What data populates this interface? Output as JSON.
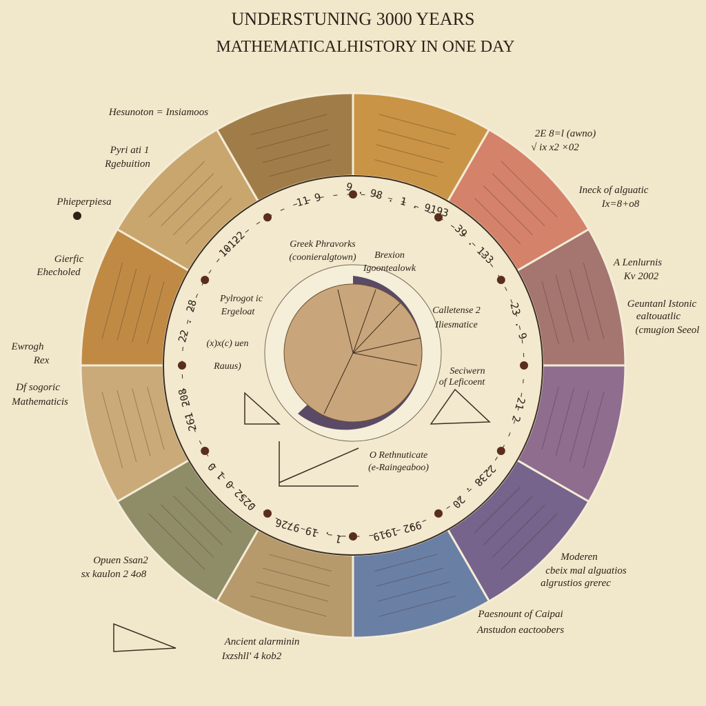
{
  "title": {
    "line1": "UNDERSTUNING 3000 YEARS",
    "line2": "MATHEMATICALHISTORY IN ONE DAY"
  },
  "labels": [
    "Hesunoton = Insiamoos",
    "Pyri ati 1",
    "Rgebuition",
    "Phieperpiesa",
    "Gierfic",
    "Ehecholed",
    "Ewrogh",
    "Rex",
    "Df sogoric",
    "Mathematicis",
    "Opuen Ssan2",
    "sx kaulon 2 4o8",
    "Ancient alarminin",
    "Ixzshll' 4 kob2",
    "Paesnount of Caipai",
    "Anstudon eactoobers",
    "Moderen",
    "cbeix mal alguatios",
    "algrustios grerec",
    "Ineck of alguatic",
    "Ix=8+o8",
    "A Lenlurnis",
    "Kv 2002",
    "Geuntanl Istonic",
    "ealtouatlic",
    "(cmugion Seeol",
    "2E 8=l (awno)",
    "√ ix x2 ×02"
  ],
  "inner_labels": [
    "Greek Phravorks",
    "(coonieralgtown)",
    "Brexion",
    "Igoontealowk",
    "Pylrogot ic",
    "Ergeloat",
    "Calletense 2",
    "Iliesmatice",
    "Seciwern",
    "of Leficoent",
    "O Rethnuticate",
    "(e-Raingeaboo)",
    "(x)x(c) uen",
    "Rauus)"
  ],
  "ring_numbers": [
    "9 . 98 . 1 . 9193",
    "39 . 133",
    "23 . 9",
    "21 2",
    "2238 . 20",
    "992 1919",
    "1 . 19 9726",
    "0252 0 1 0",
    "261 208",
    "22 . 28",
    "10122",
    "11 9"
  ]
}
